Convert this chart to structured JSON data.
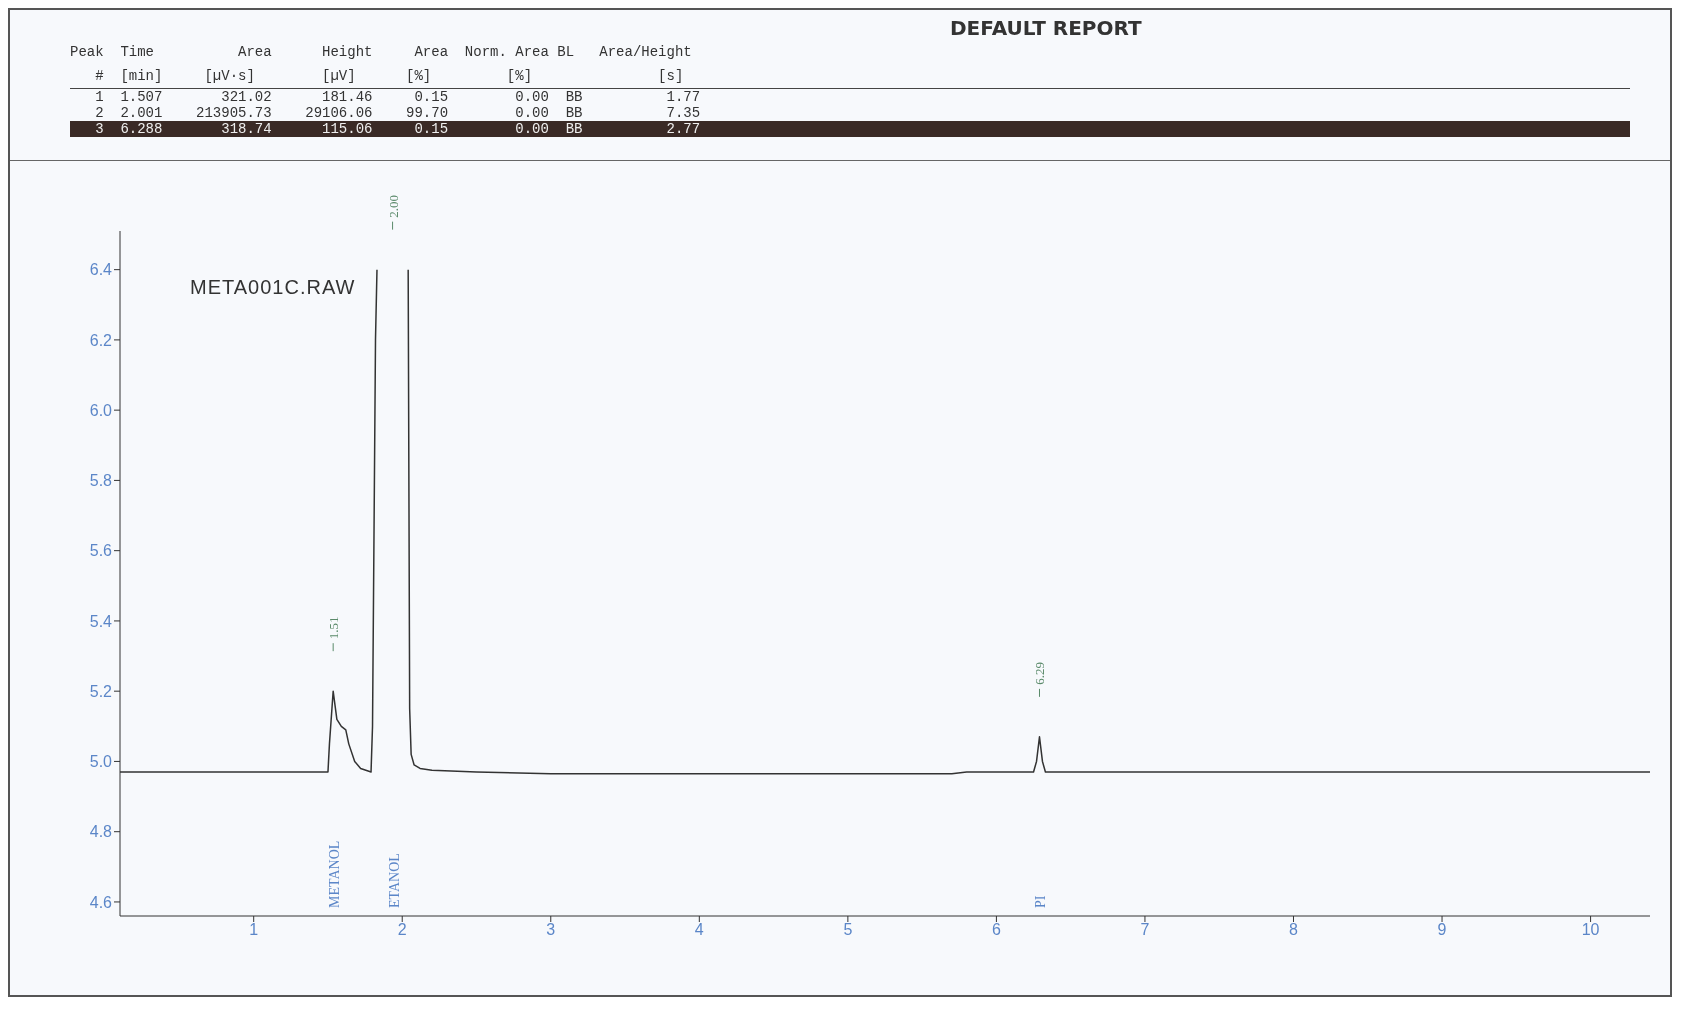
{
  "chart_data": {
    "type": "line",
    "title": "DEFAULT REPORT",
    "x": [
      0.1,
      1.5,
      1.51,
      1.535,
      1.56,
      1.59,
      1.62,
      1.64,
      1.68,
      1.72,
      1.79,
      1.8,
      1.82,
      1.83,
      null,
      2.04,
      2.05,
      2.06,
      2.08,
      2.12,
      2.2,
      2.5,
      3.0,
      5.7,
      5.8,
      6.0,
      6.25,
      6.27,
      6.29,
      6.31,
      6.33,
      10.4
    ],
    "series": [
      {
        "color": "#333333",
        "values": [
          4.97,
          4.97,
          5.05,
          5.2,
          5.12,
          5.1,
          5.09,
          5.05,
          5.0,
          4.98,
          4.97,
          5.1,
          6.2,
          6.4,
          null,
          6.4,
          5.15,
          5.02,
          4.99,
          4.98,
          4.975,
          4.97,
          4.965,
          4.965,
          4.97,
          4.97,
          4.97,
          5.0,
          5.07,
          5.0,
          4.97,
          4.97
        ]
      }
    ],
    "xlim": [
      0.1,
      10.4
    ],
    "xticks": [
      1,
      2,
      3,
      4,
      5,
      6,
      7,
      8,
      9,
      10
    ],
    "ylim": [
      4.56,
      6.51
    ],
    "yticks": [
      4.6,
      4.8,
      {
        "value": 5,
        "label": "5.0"
      },
      5.2,
      5.4,
      5.6,
      5.8,
      {
        "value": 6,
        "label": "6.0"
      },
      6.2,
      6.4
    ],
    "grid": false,
    "legend": false,
    "marker": "none",
    "line_style": "solid",
    "annotations": [
      "META001C.RAW",
      "Peak  Time          Area      Height     Area  Norm. Area BL   Area/Height",
      "   #  [min]     [µV·s]        [µV]      [%]         [%]               [s]",
      "   1  1.507       321.02      181.46     0.15        0.00  BB          1.77",
      "   2  2.001    213905.73    29106.06    99.70        0.00  BB          7.35",
      "   3  6.288       318.74      115.06     0.15        0.00  BB          2.77",
      "1.51",
      "2.00",
      "6.29",
      "METANOL",
      "ETANOL",
      "PI"
    ]
  }
}
